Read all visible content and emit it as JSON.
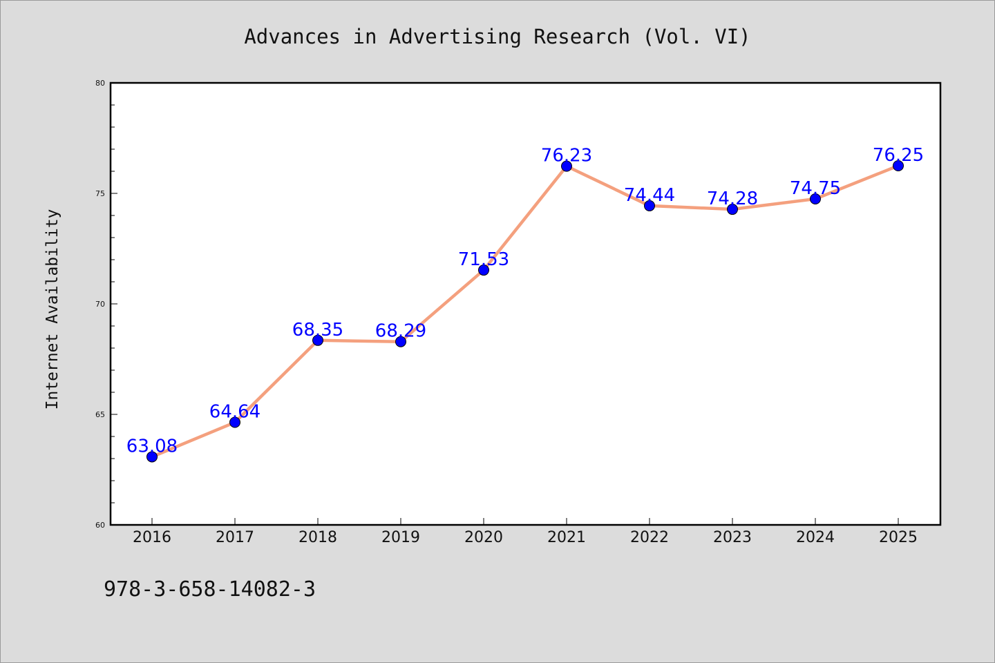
{
  "page": {
    "title": "Advances in Advertising Research (Vol. VI)",
    "isbn": "978-3-658-14082-3"
  },
  "chart_data": {
    "type": "line",
    "title": "Advances in Advertising Research (Vol. VI)",
    "xlabel": "",
    "ylabel": "Internet Availability",
    "x": [
      "2016",
      "2017",
      "2018",
      "2019",
      "2020",
      "2021",
      "2022",
      "2023",
      "2024",
      "2025"
    ],
    "series": [
      {
        "values": [
          63.08,
          64.64,
          68.35,
          68.29,
          71.53,
          76.23,
          74.44,
          74.28,
          74.75,
          76.25
        ],
        "labels": [
          "63.08",
          "64.64",
          "68.35",
          "68.29",
          "71.53",
          "76.23",
          "74.44",
          "74.28",
          "74.75",
          "76.25"
        ],
        "line_color": "#f4a07e",
        "marker_color": "#0000ff"
      }
    ],
    "ylim": [
      60,
      80
    ],
    "yticks": [
      "60",
      "65",
      "70",
      "75",
      "80"
    ],
    "grid": false,
    "legend": "none",
    "plot_background": "#ffffff",
    "page_background": "#dcdcdc"
  }
}
